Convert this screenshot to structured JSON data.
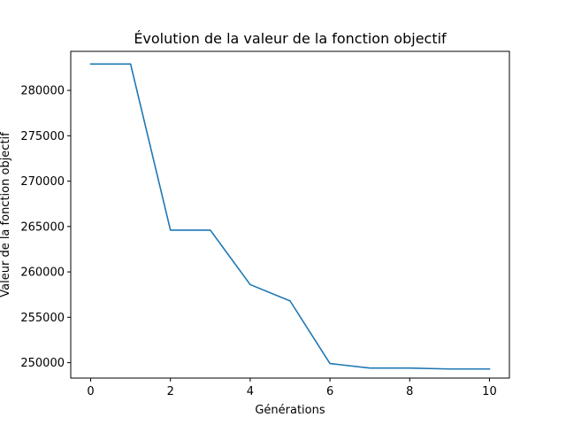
{
  "chart_data": {
    "type": "line",
    "title": "Évolution de la valeur de la fonction objectif",
    "xlabel": "Générations",
    "ylabel": "Valeur de la fonction objectif",
    "xlim": [
      -0.5,
      10.5
    ],
    "ylim": [
      248300,
      284300
    ],
    "x_ticks": [
      0,
      2,
      4,
      6,
      8,
      10
    ],
    "y_ticks": [
      250000,
      255000,
      260000,
      265000,
      270000,
      275000,
      280000
    ],
    "grid": false,
    "series": [
      {
        "color": "#1f77b4",
        "x": [
          0,
          1,
          2,
          3,
          4,
          5,
          6,
          7,
          8,
          9,
          10
        ],
        "y": [
          282900,
          282900,
          264600,
          264600,
          258600,
          256800,
          249900,
          249400,
          249400,
          249300,
          249300
        ]
      }
    ]
  }
}
